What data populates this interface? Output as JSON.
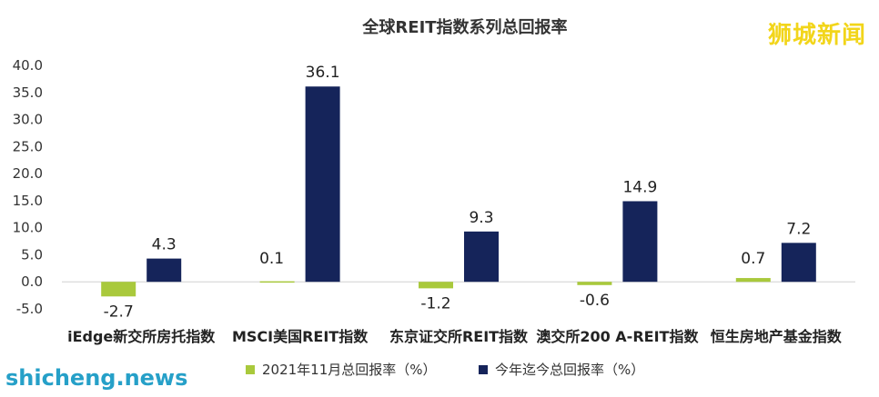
{
  "watermarks": {
    "top_right": "狮城新闻",
    "bottom_left": "shicheng.news"
  },
  "chart_data": {
    "type": "bar",
    "title": "全球REIT指数系列总回报率",
    "categories": [
      "iEdge新交所房托指数",
      "MSCI美国REIT指数",
      "东京证交所REIT指数",
      "澳交所200 A-REIT指数",
      "恒生房地产基金指数"
    ],
    "series": [
      {
        "name": "2021年11月总回报率（%）",
        "color": "#a9c93c",
        "values": [
          -2.7,
          0.1,
          -1.2,
          -0.6,
          0.7
        ]
      },
      {
        "name": "今年迄今总回报率（%）",
        "color": "#15245a",
        "values": [
          4.3,
          36.1,
          9.3,
          14.9,
          7.2
        ]
      }
    ],
    "ylim": [
      -5,
      40
    ],
    "yticks": [
      "-5.0",
      "0.0",
      "5.0",
      "10.0",
      "15.0",
      "20.0",
      "25.0",
      "30.0",
      "35.0",
      "40.0"
    ],
    "legend": "bottom",
    "grid": false
  }
}
